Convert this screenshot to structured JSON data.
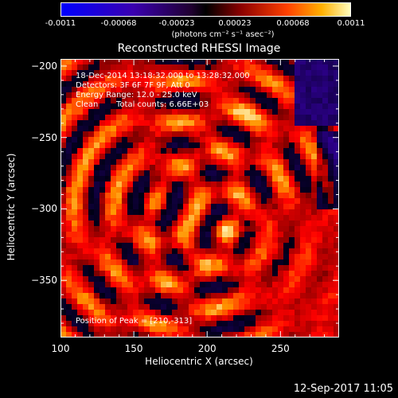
{
  "colorbar": {
    "ticks": [
      "-0.0011",
      "-0.00068",
      "-0.00023",
      "0.00023",
      "0.00068",
      "0.0011"
    ],
    "units": "(photons cm⁻² s⁻¹ asec⁻²)",
    "range": [
      -0.0011,
      0.0011
    ]
  },
  "chart_data": {
    "type": "heatmap",
    "title": "Reconstructed RHESSI Image",
    "xlabel": "Heliocentric X (arcsec)",
    "ylabel": "Heliocentric Y (arcsec)",
    "xlim": [
      100,
      290
    ],
    "ylim": [
      -390,
      -195
    ],
    "xticks": [
      100,
      150,
      200,
      250
    ],
    "yticks": [
      -200,
      -250,
      -300,
      -350
    ],
    "peak": {
      "x": 210,
      "y": -313
    },
    "annotations": {
      "time_range": "18-Dec-2014 13:18:32.000 to 13:28:32.000",
      "detectors": "Detectors: 3F 6F 7F 9F, Att 0",
      "energy_range": "Energy Range: 12.0 - 25.0 keV",
      "method": "Clean",
      "total_counts": "Total counts: 6.66E+03",
      "peak_text": "Position of Peak = [210,-313]"
    }
  },
  "footer": {
    "timestamp": "12-Sep-2017 11:05"
  }
}
